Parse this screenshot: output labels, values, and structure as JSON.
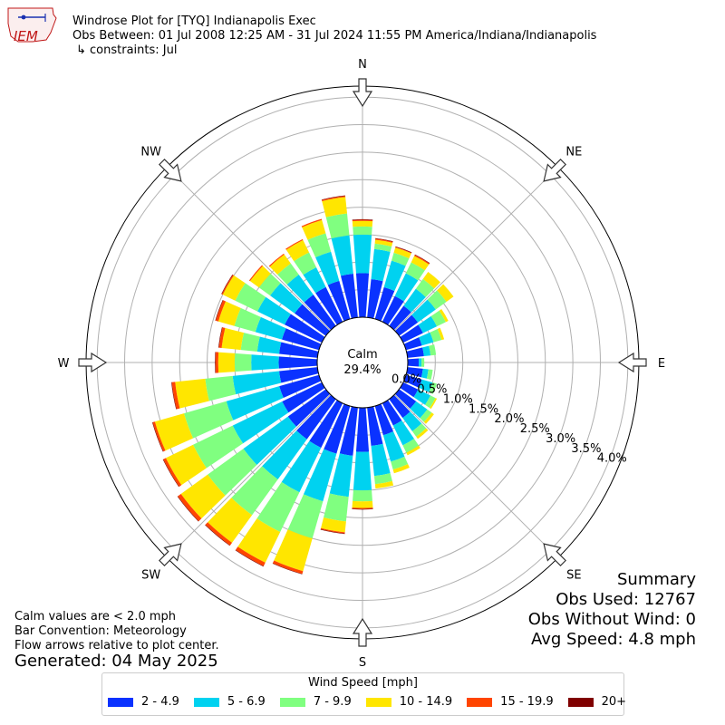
{
  "header": {
    "title": "Windrose Plot for [TYQ] Indianapolis Exec",
    "obs_between": "Obs Between: 01 Jul 2008 12:25 AM - 31 Jul 2024 11:55 PM America/Indiana/Indianapolis",
    "constraints": "↳ constraints: Jul"
  },
  "logo_text": "IEM",
  "footer": {
    "calm_note": "Calm values are < 2.0 mph",
    "bar_convention": "Bar Convention: Meteorology",
    "flow_arrows": "Flow arrows relative to plot center.",
    "generated": "Generated: 04 May 2025"
  },
  "summary": {
    "title": "Summary",
    "obs_used": "Obs Used: 12767",
    "obs_without_wind": "Obs Without Wind: 0",
    "avg_speed": "Avg Speed: 4.8 mph"
  },
  "calm": {
    "label": "Calm",
    "value": "29.4%"
  },
  "compass": [
    "N",
    "NE",
    "E",
    "SE",
    "S",
    "SW",
    "W",
    "NW"
  ],
  "chart_data": {
    "type": "windrose",
    "title": "Windrose Plot for [TYQ] Indianapolis Exec",
    "radial_unit": "%",
    "radial_ticks": [
      "0.0%",
      "0.5%",
      "1.0%",
      "1.5%",
      "2.0%",
      "2.5%",
      "3.0%",
      "3.5%",
      "4.0%"
    ],
    "rmax": 4.2,
    "calm_percent": 29.4,
    "direction_degrees": [
      0,
      10,
      20,
      30,
      40,
      50,
      60,
      70,
      80,
      90,
      100,
      110,
      120,
      130,
      140,
      150,
      160,
      170,
      180,
      190,
      200,
      210,
      220,
      230,
      240,
      250,
      260,
      270,
      280,
      290,
      300,
      310,
      320,
      330,
      340,
      350
    ],
    "legend_title": "Wind Speed [mph]",
    "series": [
      {
        "name": "2 - 4.9",
        "color": "#0a32ff",
        "values": [
          0.8,
          0.7,
          0.6,
          0.52,
          0.45,
          0.42,
          0.4,
          0.3,
          0.3,
          0.2,
          0.28,
          0.3,
          0.3,
          0.38,
          0.42,
          0.45,
          0.55,
          0.7,
          0.8,
          0.88,
          0.9,
          0.9,
          0.9,
          0.85,
          0.8,
          0.75,
          0.7,
          0.7,
          0.7,
          0.7,
          0.75,
          0.7,
          0.7,
          0.7,
          0.72,
          0.8
        ]
      },
      {
        "name": "5 - 6.9",
        "color": "#00d2f0",
        "values": [
          0.7,
          0.55,
          0.5,
          0.46,
          0.38,
          0.4,
          0.28,
          0.22,
          0.12,
          0.05,
          0.1,
          0.2,
          0.25,
          0.25,
          0.3,
          0.4,
          0.5,
          0.55,
          0.7,
          0.75,
          0.9,
          0.9,
          0.9,
          1.0,
          1.0,
          1.0,
          0.85,
          0.5,
          0.4,
          0.5,
          0.55,
          0.55,
          0.45,
          0.4,
          0.55,
          0.7
        ]
      },
      {
        "name": "7 - 9.9",
        "color": "#80ff80",
        "values": [
          0.15,
          0.1,
          0.15,
          0.22,
          0.22,
          0.24,
          0.18,
          0.15,
          0.1,
          0.05,
          0.08,
          0.08,
          0.1,
          0.1,
          0.12,
          0.15,
          0.15,
          0.15,
          0.2,
          0.45,
          0.7,
          0.8,
          0.8,
          0.8,
          0.8,
          0.8,
          0.5,
          0.3,
          0.3,
          0.4,
          0.45,
          0.25,
          0.25,
          0.3,
          0.35,
          0.4
        ]
      },
      {
        "name": "10 - 14.9",
        "color": "#ffe600",
        "values": [
          0.1,
          0.07,
          0.1,
          0.13,
          0.16,
          0.16,
          0.05,
          0.05,
          0.0,
          0.0,
          0.0,
          0.0,
          0.03,
          0.05,
          0.05,
          0.05,
          0.07,
          0.08,
          0.12,
          0.2,
          0.62,
          0.62,
          0.62,
          0.6,
          0.55,
          0.55,
          0.55,
          0.3,
          0.35,
          0.3,
          0.25,
          0.2,
          0.2,
          0.25,
          0.25,
          0.3
        ]
      },
      {
        "name": "15 - 19.9",
        "color": "#ff4500",
        "values": [
          0.02,
          0.02,
          0.01,
          0.02,
          0.0,
          0.0,
          0.0,
          0.0,
          0.0,
          0.0,
          0.0,
          0.0,
          0.0,
          0.0,
          0.0,
          0.0,
          0.0,
          0.0,
          0.02,
          0.02,
          0.05,
          0.07,
          0.06,
          0.07,
          0.05,
          0.04,
          0.06,
          0.05,
          0.05,
          0.05,
          0.02,
          0.02,
          0.02,
          0.02,
          0.02,
          0.02
        ]
      },
      {
        "name": "20+",
        "color": "#800000",
        "values": [
          0.01,
          0.01,
          0.01,
          0.01,
          0.0,
          0.0,
          0.0,
          0.0,
          0.0,
          0.0,
          0.0,
          0.0,
          0.0,
          0.0,
          0.0,
          0.0,
          0.0,
          0.0,
          0.01,
          0.01,
          0.01,
          0.01,
          0.01,
          0.01,
          0.01,
          0.01,
          0.01,
          0.01,
          0.01,
          0.01,
          0.01,
          0.0,
          0.0,
          0.0,
          0.0,
          0.01
        ]
      }
    ]
  }
}
